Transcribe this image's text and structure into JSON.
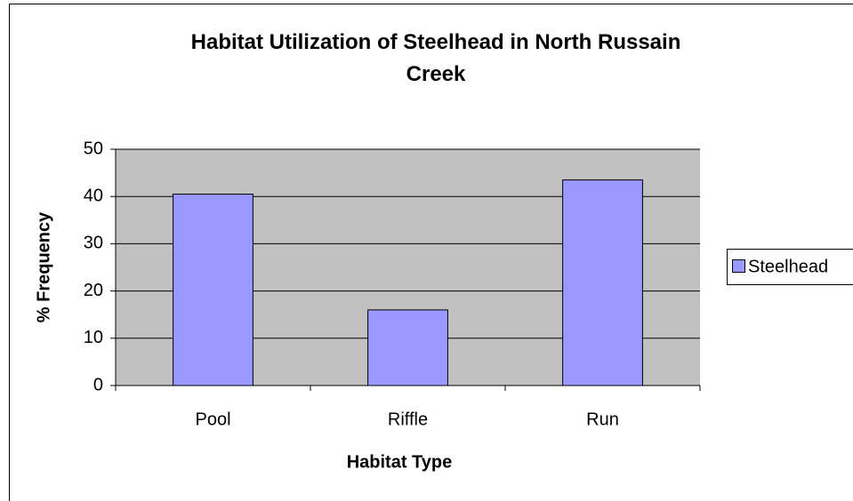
{
  "chart_data": {
    "type": "bar",
    "title": "Habitat Utilization of Steelhead in North Russain Creek",
    "x_label": "Habitat Type",
    "y_label": "% Frequency",
    "categories": [
      "Pool",
      "Riffle",
      "Run"
    ],
    "series": [
      {
        "name": "Steelhead",
        "color": "#9999ff",
        "values": [
          40.5,
          16,
          43.5
        ]
      }
    ],
    "ylim": [
      0,
      50
    ],
    "yticks": [
      0,
      10,
      20,
      30,
      40,
      50
    ],
    "grid": true,
    "legend": "right"
  }
}
